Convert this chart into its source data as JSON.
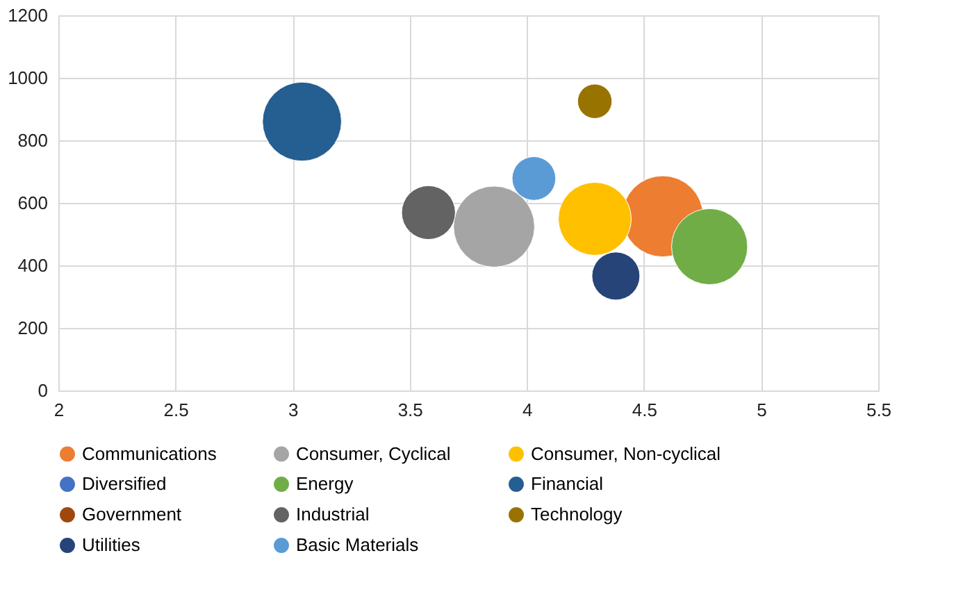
{
  "chart_data": {
    "type": "bubble",
    "xlim": [
      2,
      5.5
    ],
    "xticks": [
      2,
      2.5,
      3,
      3.5,
      4,
      4.5,
      5,
      5.5
    ],
    "ylim": [
      0,
      1200
    ],
    "yticks": [
      0,
      200,
      400,
      600,
      800,
      1000,
      1200
    ],
    "grid": true,
    "legend": "bottom",
    "series": [
      {
        "name": "Communications",
        "color": "#ed7d31",
        "x": [
          4.58
        ],
        "values": [
          557
        ],
        "sizes": [
          1
        ]
      },
      {
        "name": "Consumer, Cyclical",
        "color": "#a5a5a5",
        "x": [
          3.86
        ],
        "values": [
          524
        ],
        "sizes": [
          1
        ]
      },
      {
        "name": "Consumer, Non-cyclical",
        "color": "#ffc000",
        "x": [
          4.29
        ],
        "values": [
          549
        ],
        "sizes": [
          0.81
        ]
      },
      {
        "name": "Diversified",
        "color": "#4472c4"
      },
      {
        "name": "Energy",
        "color": "#70ad47",
        "x": [
          4.78
        ],
        "values": [
          460
        ],
        "sizes": [
          0.88
        ]
      },
      {
        "name": "Financial",
        "color": "#255e91",
        "x": [
          3.04
        ],
        "values": [
          860
        ],
        "sizes": [
          0.95
        ]
      },
      {
        "name": "Government",
        "color": "#9e480e"
      },
      {
        "name": "Industrial",
        "color": "#636363",
        "x": [
          3.58
        ],
        "values": [
          569
        ],
        "sizes": [
          0.44
        ]
      },
      {
        "name": "Technology",
        "color": "#997300",
        "x": [
          4.29
        ],
        "values": [
          925
        ],
        "sizes": [
          0.18
        ]
      },
      {
        "name": "Utilities",
        "color": "#264478",
        "x": [
          4.38
        ],
        "values": [
          366
        ],
        "sizes": [
          0.35
        ]
      },
      {
        "name": "Basic Materials",
        "color": "#5b9bd5",
        "x": [
          4.03
        ],
        "values": [
          678
        ],
        "sizes": [
          0.29
        ]
      }
    ]
  }
}
